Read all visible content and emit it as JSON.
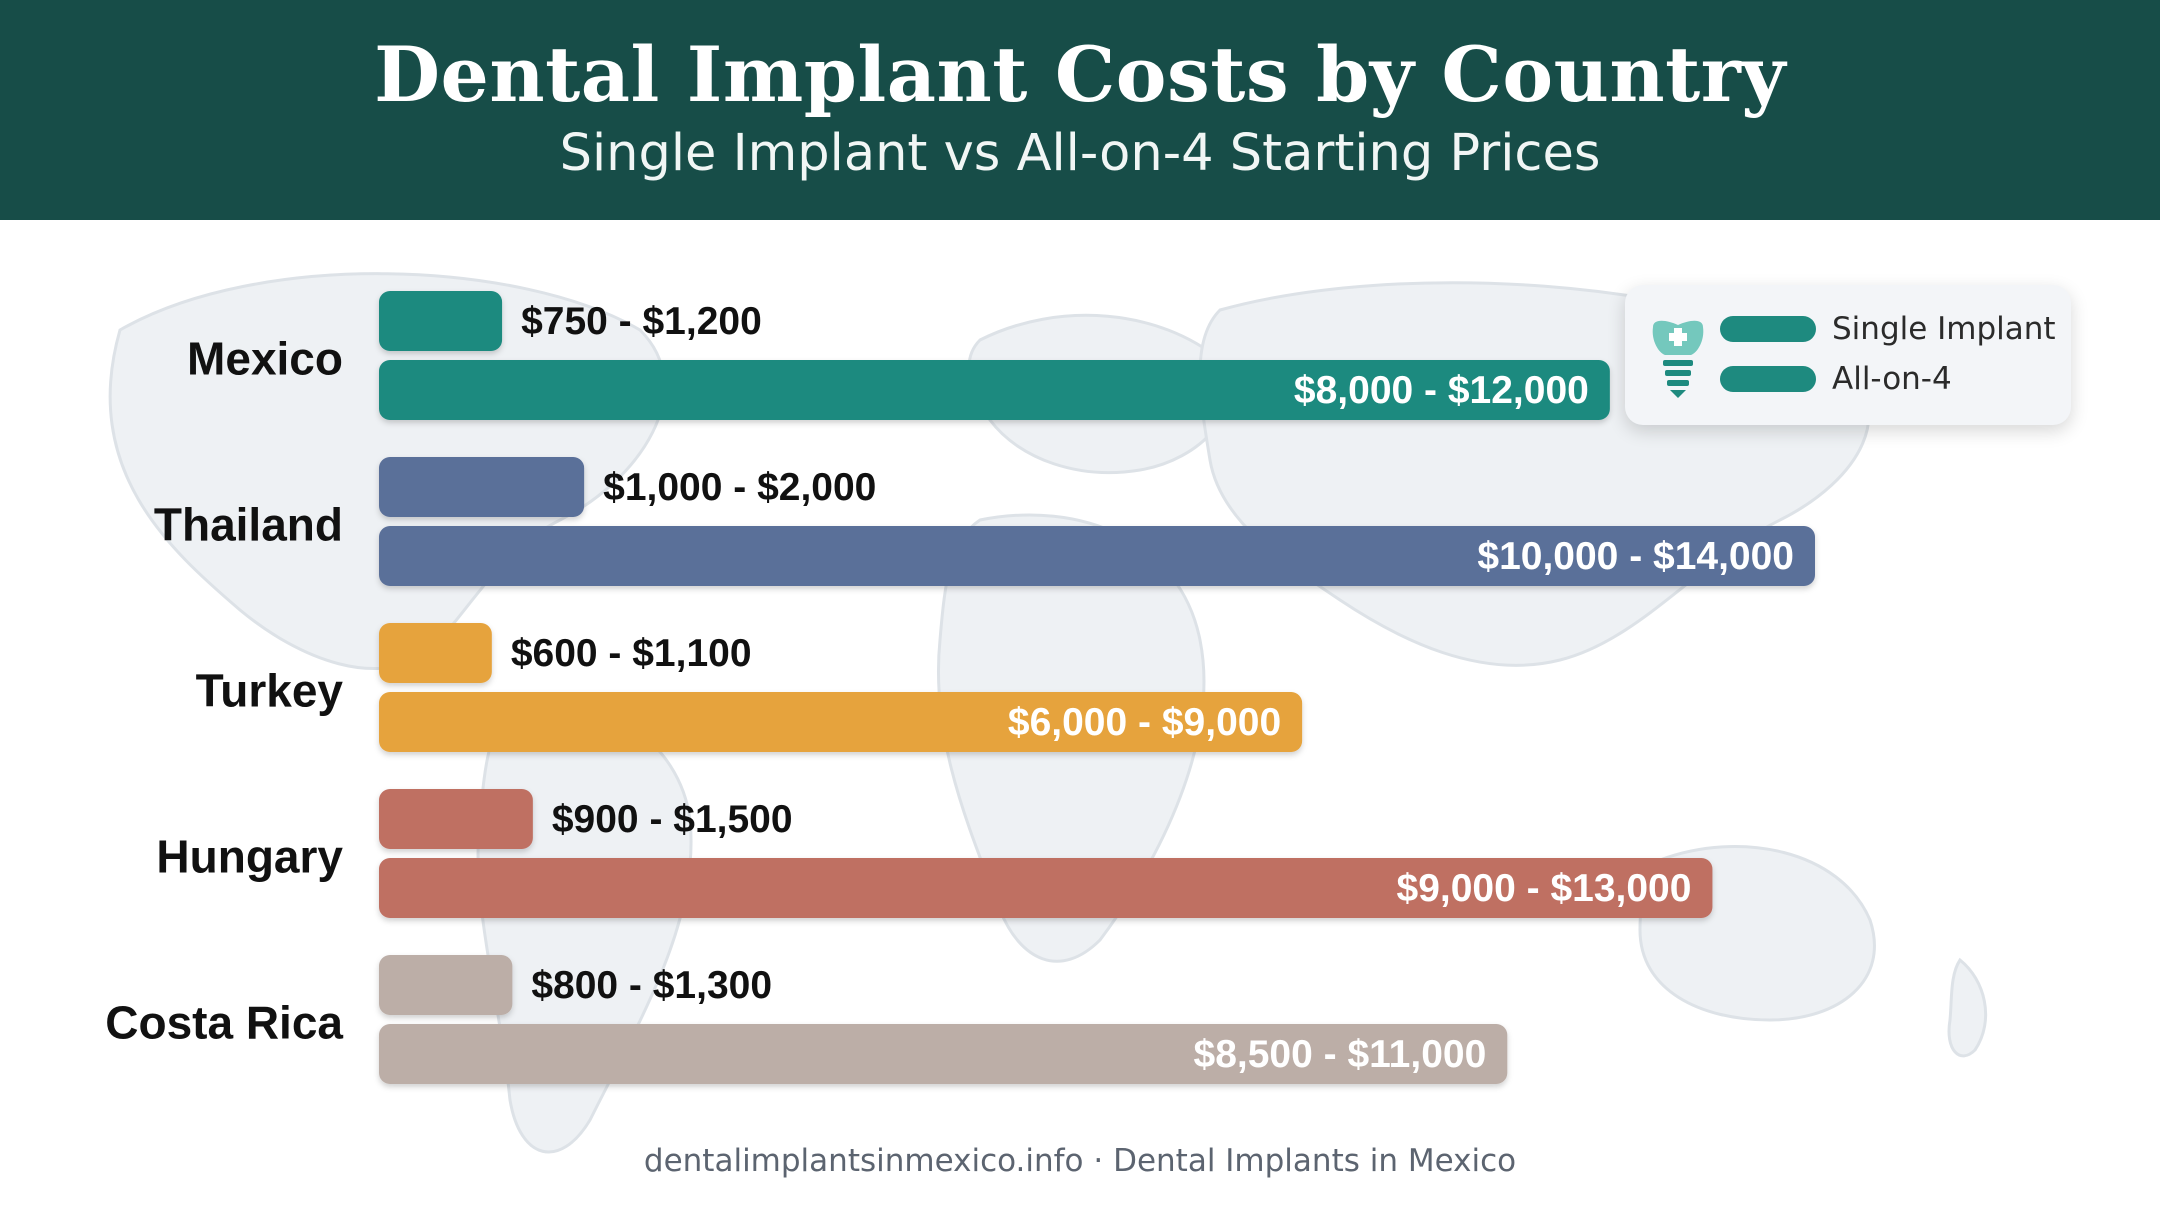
{
  "header": {
    "title": "Dental Implant Costs by Country",
    "subtitle": "Single Implant vs All-on-4 Starting Prices"
  },
  "legend": {
    "placement": "top-right",
    "icon": "tooth-implant-icon",
    "items": [
      {
        "label": "Single Implant",
        "color": "#1e8a7f"
      },
      {
        "label": "All-on-4",
        "color": "#1e8a7f"
      }
    ]
  },
  "chart_data": {
    "type": "bar",
    "orientation": "horizontal",
    "title": "Dental Implant Costs by Country",
    "subtitle": "Single Implant vs All-on-4 Starting Prices",
    "xlim": [
      0,
      14000
    ],
    "grid": false,
    "categories": [
      "Mexico",
      "Thailand",
      "Turkey",
      "Hungary",
      "Costa Rica"
    ],
    "colors": [
      "#1e8a7f",
      "#5a6f99",
      "#e6a33e",
      "#bf6f62",
      "#bcaea7"
    ],
    "series": [
      {
        "name": "Single Implant",
        "values": [
          1200,
          2000,
          1100,
          1500,
          1300
        ],
        "labels": [
          "$750 - $1,200",
          "$1,000 - $2,000",
          "$600 - $1,100",
          "$900 - $1,500",
          "$800 - $1,300"
        ],
        "low": [
          750,
          1000,
          600,
          900,
          800
        ],
        "high": [
          1200,
          2000,
          1100,
          1500,
          1300
        ]
      },
      {
        "name": "All-on-4",
        "values": [
          12000,
          14000,
          9000,
          13000,
          11000
        ],
        "labels": [
          "$8,000 - $12,000",
          "$10,000 - $14,000",
          "$6,000 - $9,000",
          "$9,000 - $13,000",
          "$8,500 - $11,000"
        ],
        "low": [
          8000,
          10000,
          6000,
          9000,
          8500
        ],
        "high": [
          12000,
          14000,
          9000,
          13000,
          11000
        ]
      }
    ]
  },
  "footer": {
    "source": "dentalimplantsinmexico.info · Dental Implants in Mexico"
  }
}
